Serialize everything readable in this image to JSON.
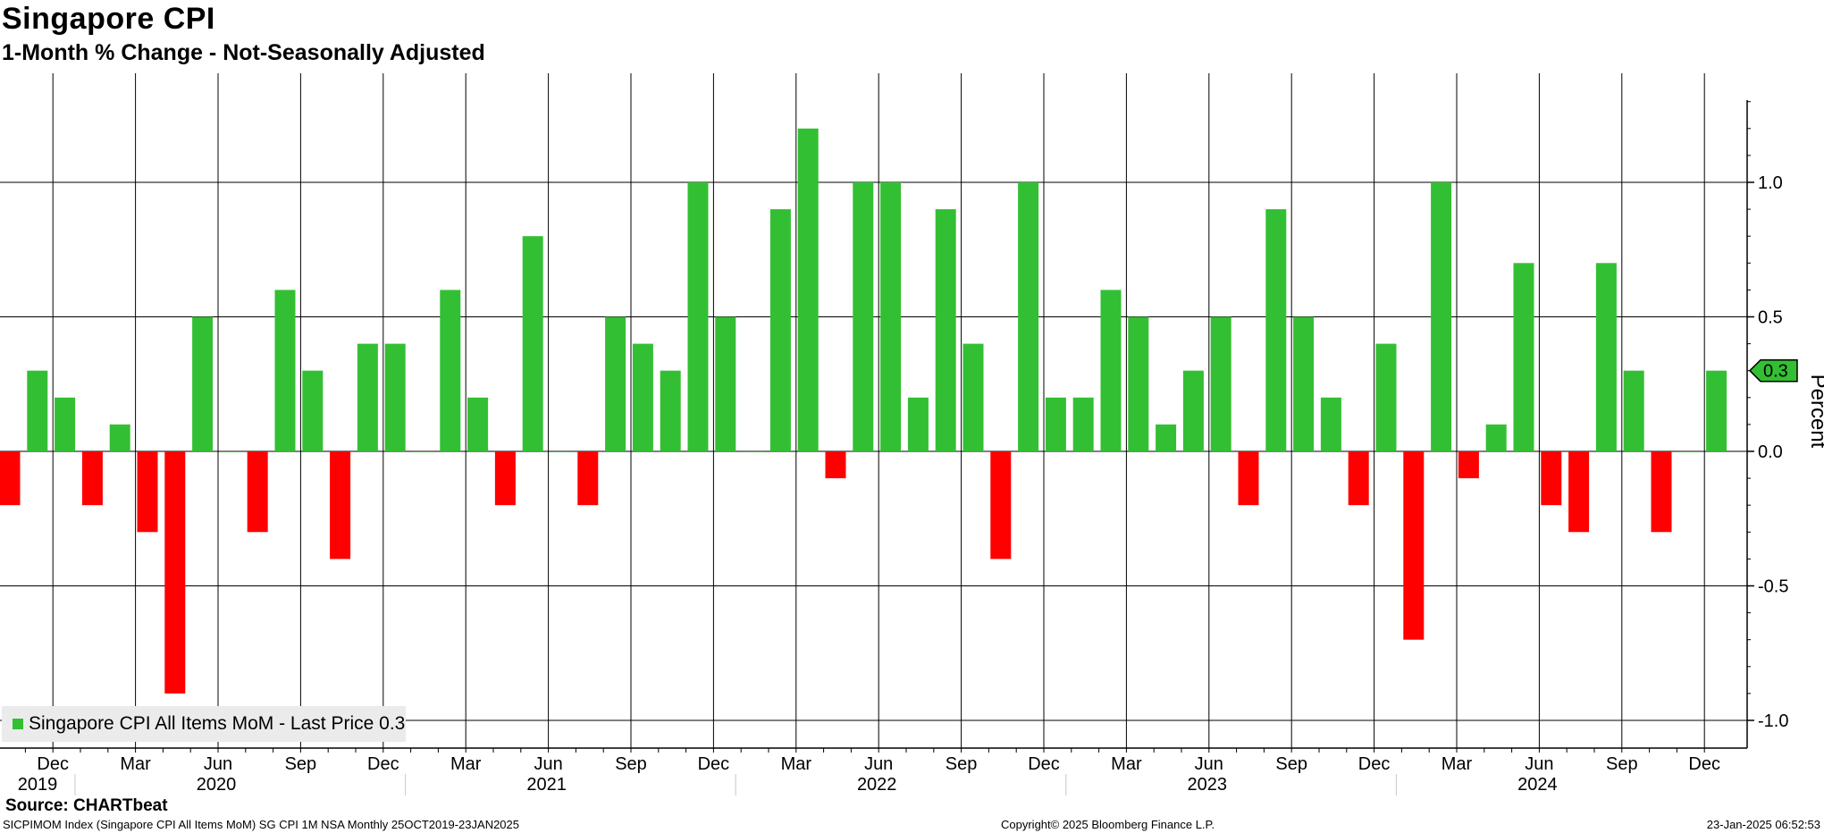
{
  "header": {
    "title": "Singapore CPI",
    "subtitle": "1-Month % Change - Not-Seasonally Adjusted"
  },
  "chart_data": {
    "type": "bar",
    "title": "Singapore CPI",
    "subtitle": "1-Month % Change - Not-Seasonally Adjusted",
    "ylabel": "Percent",
    "ylim": [
      -1.1,
      1.35
    ],
    "yticks": [
      -1.0,
      -0.5,
      0.0,
      0.5,
      1.0
    ],
    "ytick_labels": [
      "-1.0",
      "-0.5",
      "0.0",
      "0.5",
      "1.0"
    ],
    "grid": true,
    "legend_position": "bottom-left",
    "positive_color": "#33bf33",
    "negative_color": "#ff0000",
    "start_month": "2019-10",
    "end_month": "2024-12",
    "series": [
      {
        "name": "Singapore CPI All Items MoM",
        "values": [
          -0.2,
          0.3,
          0.2,
          -0.2,
          0.1,
          -0.3,
          -0.9,
          0.5,
          0.0,
          -0.3,
          0.6,
          0.3,
          -0.4,
          0.4,
          0.4,
          0.0,
          0.6,
          0.2,
          -0.2,
          0.8,
          0.0,
          -0.2,
          0.5,
          0.4,
          0.3,
          1.0,
          0.5,
          0.0,
          0.9,
          1.2,
          -0.1,
          1.0,
          1.0,
          0.2,
          0.9,
          0.4,
          -0.4,
          1.0,
          0.2,
          0.2,
          0.6,
          0.5,
          0.1,
          0.3,
          0.5,
          -0.2,
          0.9,
          0.5,
          0.2,
          -0.2,
          0.4,
          -0.7,
          1.0,
          -0.1,
          0.1,
          0.7,
          -0.2,
          -0.3,
          0.7,
          0.3,
          -0.3,
          0.0,
          0.3
        ]
      }
    ],
    "last_price": "0.3",
    "x_month_labels": [
      {
        "month": "2019-12",
        "label": "Dec"
      },
      {
        "month": "2020-03",
        "label": "Mar"
      },
      {
        "month": "2020-06",
        "label": "Jun"
      },
      {
        "month": "2020-09",
        "label": "Sep"
      },
      {
        "month": "2020-12",
        "label": "Dec"
      },
      {
        "month": "2021-03",
        "label": "Mar"
      },
      {
        "month": "2021-06",
        "label": "Jun"
      },
      {
        "month": "2021-09",
        "label": "Sep"
      },
      {
        "month": "2021-12",
        "label": "Dec"
      },
      {
        "month": "2022-03",
        "label": "Mar"
      },
      {
        "month": "2022-06",
        "label": "Jun"
      },
      {
        "month": "2022-09",
        "label": "Sep"
      },
      {
        "month": "2022-12",
        "label": "Dec"
      },
      {
        "month": "2023-03",
        "label": "Mar"
      },
      {
        "month": "2023-06",
        "label": "Jun"
      },
      {
        "month": "2023-09",
        "label": "Sep"
      },
      {
        "month": "2023-12",
        "label": "Dec"
      },
      {
        "month": "2024-03",
        "label": "Mar"
      },
      {
        "month": "2024-06",
        "label": "Jun"
      },
      {
        "month": "2024-09",
        "label": "Sep"
      },
      {
        "month": "2024-12",
        "label": "Dec"
      }
    ],
    "x_year_labels": [
      "2019",
      "2020",
      "2021",
      "2022",
      "2023",
      "2024"
    ]
  },
  "legend": {
    "label": "Singapore CPI All Items MoM - Last Price 0.3"
  },
  "footer": {
    "source": "Source: CHARTbeat",
    "left": "SICPIMOM Index (Singapore CPI All Items MoM) SG CPI 1M NSA  Monthly 25OCT2019-23JAN2025",
    "middle": "Copyright© 2025 Bloomberg Finance L.P.",
    "right": "23-Jan-2025 06:52:53"
  }
}
